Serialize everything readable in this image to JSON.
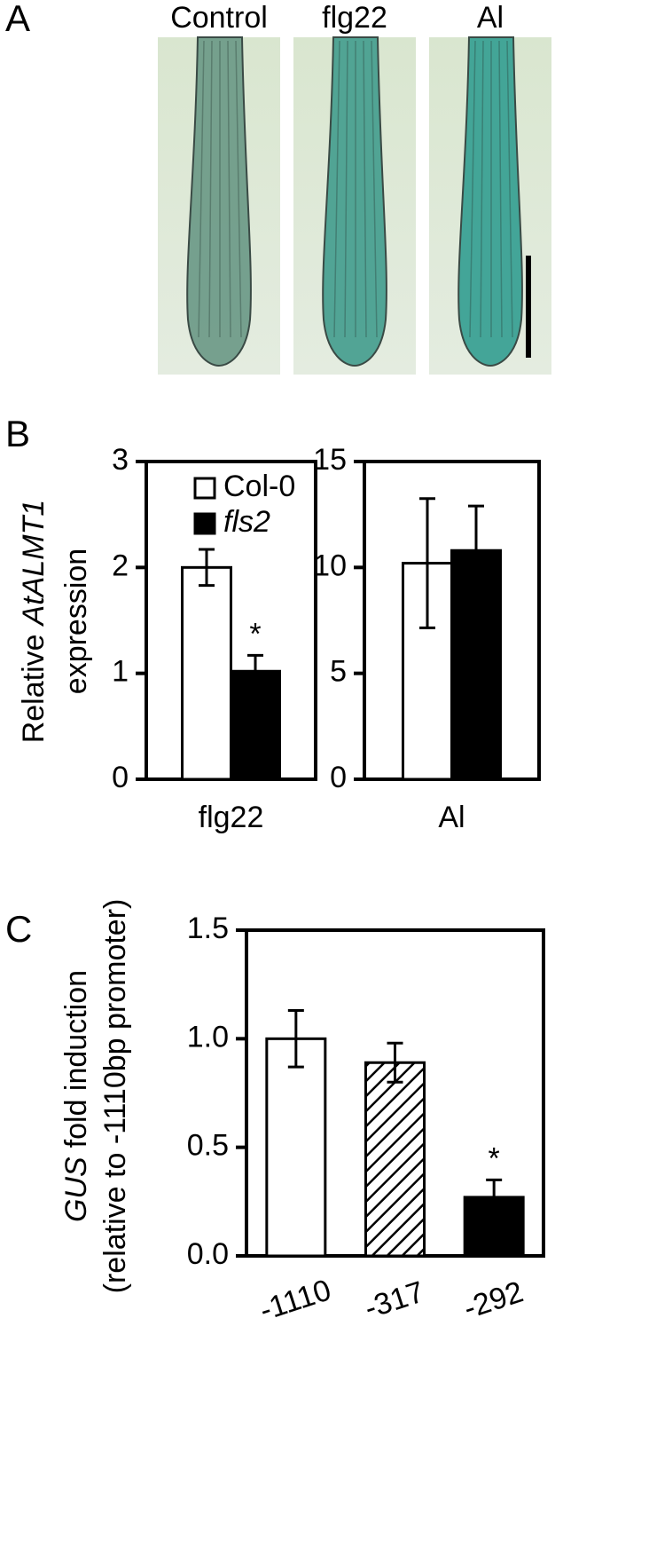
{
  "panel_labels": [
    "A",
    "B",
    "C"
  ],
  "images": {
    "titles": [
      "Control",
      "flg22",
      "Al"
    ]
  },
  "chart_data": [
    {
      "type": "bar",
      "ylabel": [
        "Relative",
        "AtALMT1",
        "expression"
      ],
      "categories": [
        "flg22"
      ],
      "series": [
        {
          "name": "Col-0",
          "color": "#ffffff",
          "values": [
            2.0
          ],
          "errors": [
            0.17
          ],
          "significance": [
            null
          ]
        },
        {
          "name": "fls2",
          "color": "#000000",
          "values": [
            1.02
          ],
          "errors": [
            0.15
          ],
          "significance": [
            "*"
          ]
        }
      ],
      "legend": "upper left",
      "ylim": [
        0,
        3
      ],
      "yticks": [
        0,
        1,
        2,
        3
      ]
    },
    {
      "type": "bar",
      "categories": [
        "Al"
      ],
      "series": [
        {
          "color": "#ffffff",
          "values": [
            10.2
          ],
          "errors": [
            3.05
          ]
        },
        {
          "color": "#000000",
          "values": [
            10.8
          ],
          "errors": [
            2.1
          ]
        }
      ],
      "ylim": [
        0,
        15
      ],
      "yticks": [
        0,
        5,
        10,
        15
      ]
    },
    {
      "type": "bar",
      "ylabel": [
        "GUS",
        "fold induction",
        "(relative to -1110bp promoter)"
      ],
      "categories": [
        "-1110",
        "-317",
        "-292"
      ],
      "values": [
        1.0,
        0.89,
        0.27
      ],
      "errors": [
        0.13,
        0.09,
        0.08
      ],
      "colors": [
        "#ffffff",
        "hatch",
        "#000000"
      ],
      "significance": [
        null,
        null,
        "*"
      ],
      "ylim": [
        0,
        1.5
      ],
      "yticks": [
        {
          "value": 0,
          "label": "0.0"
        },
        0.5,
        {
          "value": 1,
          "label": "1.0"
        },
        1.5
      ]
    }
  ]
}
